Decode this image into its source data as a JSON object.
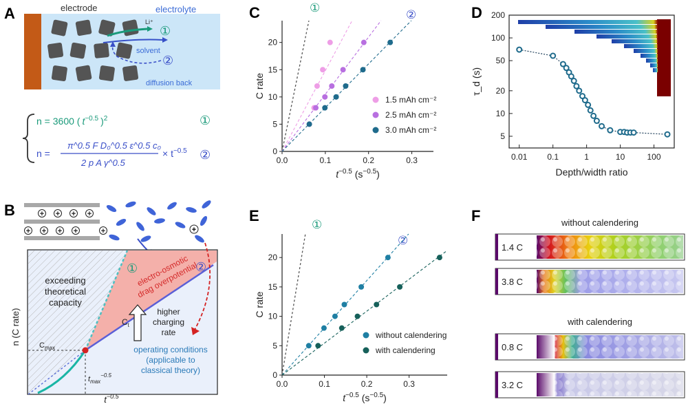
{
  "panels": {
    "A": {
      "letter": "A",
      "electrode_label": "electrode",
      "electrolyte_label": "electrolyte",
      "li_label": "Li⁺",
      "solvent_label": "solvent",
      "diffusion_label": "diffusion back",
      "mark1": "①",
      "mark2": "②",
      "eq1_lhs": "n = 3600 (",
      "eq1_t": "t",
      "eq1_exp": "−0.5",
      "eq1_rhs": ")",
      "eq1_sq": "2",
      "eq2_lhs": "n =",
      "eq2_num": "π^0.5 F D₀^0.5 ε^0.5 c₀",
      "eq2_den": "2 p A γ^0.5",
      "eq2_rhs": "× t",
      "eq2_exp": "−0.5"
    },
    "B": {
      "letter": "B",
      "ylabel": "n (C rate)",
      "xlabel": "t",
      "xlabel_exp": "−0.5",
      "exceeding": [
        "exceeding",
        "theoretical",
        "capacity"
      ],
      "drag": [
        "electro-osmotic",
        "drag overpotential"
      ],
      "higher": [
        "higher",
        "charging",
        "rate"
      ],
      "ct": "C",
      "ct_sub": "t",
      "operating": [
        "operating conditions",
        "(applicable to",
        "classical theory)"
      ],
      "cmax": "C",
      "cmax_sub": "max",
      "tmax": "t",
      "tmax_sub": "max",
      "tmax_exp": "−0.5",
      "mark1": "①",
      "mark2": "②"
    },
    "C": {
      "letter": "C",
      "mark1": "①",
      "mark2": "②"
    },
    "D": {
      "letter": "D"
    },
    "E": {
      "letter": "E",
      "mark1": "①",
      "mark2": "②"
    },
    "F": {
      "letter": "F",
      "without": "without calendering",
      "with": "with calendering",
      "rows": [
        "1.4 C",
        "3.8 C",
        "0.8 C",
        "3.2 C"
      ]
    }
  },
  "chart_data": [
    {
      "panel": "C",
      "type": "scatter",
      "xlabel": "t^−0.5 (s^−0.5)",
      "ylabel": "C rate",
      "xlim": [
        0,
        0.35
      ],
      "ylim": [
        0,
        24
      ],
      "xticks": [
        "0.0",
        "0.1",
        "0.2",
        "0.3"
      ],
      "yticks": [
        "0",
        "5",
        "10",
        "15",
        "20"
      ],
      "legend_position": "center-right",
      "series": [
        {
          "name": "1.5 mAh cm⁻²",
          "color": "#ee9ee6",
          "x": [
            0.063,
            0.074,
            0.081,
            0.094,
            0.111
          ],
          "y": [
            5,
            8,
            12,
            15,
            20
          ]
        },
        {
          "name": "2.5 mAh cm⁻²",
          "color": "#b86fe0",
          "x": [
            0.078,
            0.099,
            0.115,
            0.141,
            0.189
          ],
          "y": [
            8,
            10,
            12,
            15,
            20
          ]
        },
        {
          "name": "3.0 mAh cm⁻²",
          "color": "#1f6b8c",
          "x": [
            0.063,
            0.099,
            0.125,
            0.147,
            0.187,
            0.25
          ],
          "y": [
            5,
            8,
            10,
            12,
            15,
            20
          ]
        }
      ]
    },
    {
      "panel": "D",
      "type": "scatter",
      "xlabel": "Depth/width ratio",
      "ylabel": "τ_d (s)",
      "xscale": "log",
      "yscale": "log",
      "xlim": [
        0.005,
        400
      ],
      "ylim": [
        3.5,
        200
      ],
      "xticks": [
        "0.01",
        "0.1",
        "1",
        "10",
        "100"
      ],
      "yticks": [
        "5",
        "10",
        "20",
        "50",
        "100",
        "200"
      ],
      "series": [
        {
          "name": "",
          "color": "#1f6b8c",
          "x": [
            0.01,
            0.1,
            0.2,
            0.25,
            0.3,
            0.35,
            0.42,
            0.5,
            0.6,
            0.75,
            0.9,
            1.1,
            1.3,
            1.6,
            2.0,
            2.8,
            5,
            10,
            13,
            16,
            20,
            25,
            250
          ],
          "y": [
            70,
            58,
            45,
            40,
            35,
            31,
            27,
            23,
            20,
            17,
            15,
            13,
            11,
            9.3,
            8.0,
            6.8,
            6.0,
            5.7,
            5.7,
            5.6,
            5.6,
            5.6,
            5.3
          ]
        }
      ]
    },
    {
      "panel": "E",
      "type": "scatter",
      "xlabel": "t^−0.5 (s^−0.5)",
      "ylabel": "C rate",
      "xlim": [
        0,
        0.39
      ],
      "ylim": [
        0,
        24
      ],
      "xticks": [
        "0.0",
        "0.1",
        "0.2",
        "0.3"
      ],
      "yticks": [
        "0",
        "5",
        "10",
        "15",
        "20"
      ],
      "legend_position": "bottom-right",
      "series": [
        {
          "name": "without calendering",
          "color": "#1f7fa3",
          "x": [
            0.063,
            0.099,
            0.125,
            0.147,
            0.187,
            0.25
          ],
          "y": [
            5,
            8,
            10,
            12,
            15,
            20
          ]
        },
        {
          "name": "with calendering",
          "color": "#16605a",
          "x": [
            0.085,
            0.141,
            0.178,
            0.223,
            0.278,
            0.372
          ],
          "y": [
            5,
            8,
            10,
            12,
            15,
            20
          ]
        }
      ]
    }
  ]
}
